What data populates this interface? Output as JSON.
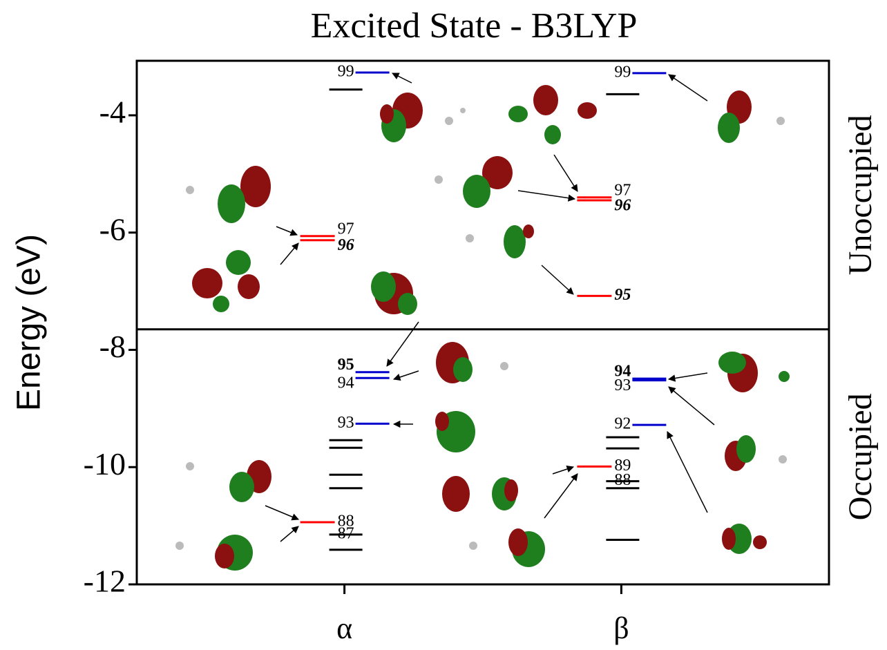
{
  "chart_data": {
    "type": "energy-levels",
    "title": "Excited State - B3LYP",
    "y_label": "Energy (eV)",
    "ylim": [
      -12,
      -3.07
    ],
    "yticks": [
      -12,
      -10,
      -8,
      -6,
      -4
    ],
    "categories": [
      "α",
      "β"
    ],
    "divider": -7.65,
    "region_labels": [
      "Unoccupied",
      "Occupied"
    ],
    "columns": [
      {
        "levels": [
          {
            "value": -3.27,
            "color": "#0000cc",
            "label": "99",
            "side": "left"
          },
          {
            "value": -3.56,
            "color": "#000000"
          },
          {
            "value": -6.06,
            "color": "#ff0000",
            "label": "97",
            "side": "right"
          },
          {
            "value": -6.13,
            "color": "#ff0000",
            "label": "96",
            "side": "right",
            "style": "bold-italic"
          },
          {
            "value": -8.38,
            "color": "#0000cc",
            "label": "95",
            "side": "left",
            "style": "bold"
          },
          {
            "value": -8.48,
            "color": "#0000cc",
            "label": "94",
            "side": "left"
          },
          {
            "value": -9.26,
            "color": "#0000cc",
            "label": "93",
            "side": "left"
          },
          {
            "value": -9.54,
            "color": "#000000"
          },
          {
            "value": -9.67,
            "color": "#000000"
          },
          {
            "value": -10.13,
            "color": "#000000"
          },
          {
            "value": -10.36,
            "color": "#000000"
          },
          {
            "value": -10.94,
            "color": "#ff0000",
            "label": "88",
            "side": "right"
          },
          {
            "value": -11.15,
            "color": "#000000",
            "label": "87",
            "side": "right"
          },
          {
            "value": -11.41,
            "color": "#000000"
          }
        ]
      },
      {
        "levels": [
          {
            "value": -3.28,
            "color": "#0000cc",
            "label": "99",
            "side": "left"
          },
          {
            "value": -3.64,
            "color": "#000000"
          },
          {
            "value": -5.4,
            "color": "#ff0000",
            "label": "97",
            "side": "right"
          },
          {
            "value": -5.45,
            "color": "#ff0000",
            "label": "96",
            "side": "right",
            "style": "bold-italic"
          },
          {
            "value": -7.08,
            "color": "#ff0000",
            "label": "95",
            "side": "right",
            "style": "bold-italic"
          },
          {
            "value": -8.49,
            "color": "#0000cc",
            "label": "94",
            "side": "left",
            "style": "bold"
          },
          {
            "value": -8.52,
            "color": "#0000cc",
            "label": "93",
            "side": "left"
          },
          {
            "value": -9.28,
            "color": "#0000cc",
            "label": "92",
            "side": "left"
          },
          {
            "value": -9.49,
            "color": "#000000"
          },
          {
            "value": -9.68,
            "color": "#000000"
          },
          {
            "value": -9.99,
            "color": "#ff0000",
            "label": "89",
            "side": "right"
          },
          {
            "value": -10.24,
            "color": "#000000",
            "label": "88",
            "side": "right"
          },
          {
            "value": -10.36,
            "color": "#000000"
          },
          {
            "value": -11.24,
            "color": "#000000"
          }
        ]
      }
    ]
  }
}
